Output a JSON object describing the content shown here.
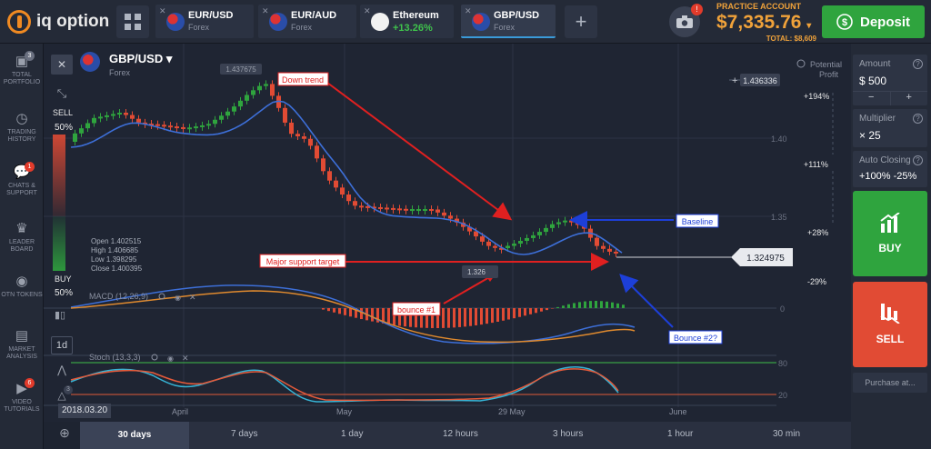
{
  "brand": {
    "name": "iq option"
  },
  "tabs": [
    {
      "pair": "EUR/USD",
      "sub": "Forex"
    },
    {
      "pair": "EUR/AUD",
      "sub": "Forex"
    },
    {
      "pair": "Ethereum",
      "sub": "+13.26%"
    },
    {
      "pair": "GBP/USD",
      "sub": "Forex"
    }
  ],
  "account": {
    "label": "PRACTICE ACCOUNT",
    "balance": "$7,335.76",
    "total": "TOTAL: $8,609",
    "deposit": "Deposit",
    "alert": "!"
  },
  "sidebar": [
    {
      "label": "TOTAL PORTFOLIO",
      "badge": "3"
    },
    {
      "label": "TRADING HISTORY",
      "badge": ""
    },
    {
      "label": "CHATS & SUPPORT",
      "badge": "1"
    },
    {
      "label": "LEADER BOARD",
      "badge": ""
    },
    {
      "label": "OTN TOKENS",
      "badge": ""
    },
    {
      "label": "MARKET ANALYSIS",
      "badge": ""
    },
    {
      "label": "VIDEO TUTORIALS",
      "badge": "6"
    }
  ],
  "asset": {
    "name": "GBP/USD",
    "type": "Forex"
  },
  "sentiment": {
    "sell_label": "SELL",
    "sell_pct": "50%",
    "buy_label": "BUY",
    "buy_pct": "50%"
  },
  "ohlc": {
    "open": "Open  1.402515",
    "high": "High   1.406685",
    "low": "Low    1.398295",
    "close": "Close  1.400395"
  },
  "price_tags": {
    "high_tag": "1.437675",
    "crosshair": "1.436336",
    "current": "1.324975",
    "low_tag": "1.326"
  },
  "potential_profit": {
    "label1": "Potential",
    "label2": "Profit",
    "levels": [
      "+194%",
      "+111%",
      "+28%",
      "-29%"
    ]
  },
  "grid_labels": [
    "1.40",
    "1.35",
    "0",
    "80",
    "20"
  ],
  "annotations": {
    "down_trend": "Down trend",
    "baseline": "Baseline",
    "support": "Major support target",
    "bounce1": "bounce #1",
    "bounce2": "Bounce #2?"
  },
  "indicators": {
    "macd": "MACD (12,26,9)",
    "stoch": "Stoch (13,3,3)",
    "timeframe": "1d",
    "ext_count": "3"
  },
  "xaxis": {
    "date": "2018.03.20",
    "labels": [
      "April",
      "May",
      "29 May",
      "June"
    ]
  },
  "timeframes": [
    "30 days",
    "7 days",
    "1 day",
    "12 hours",
    "3 hours",
    "1 hour",
    "30 min"
  ],
  "right": {
    "amount_label": "Amount",
    "amount": "$  500",
    "minus": "−",
    "plus": "+",
    "mult_label": "Multiplier",
    "mult": "× 25",
    "ac_label": "Auto Closing",
    "ac": "+100%  -25%",
    "buy": "BUY",
    "sell": "SELL",
    "purchase": "Purchase at..."
  },
  "colors": {
    "buy": "#2fa43e",
    "sell": "#e14b34",
    "accent": "#f0a23a",
    "ma": "#3d6fd8",
    "macd_signal": "#e08a2e",
    "stoch_k": "#36b4d6",
    "stoch_d": "#e55a3a"
  }
}
